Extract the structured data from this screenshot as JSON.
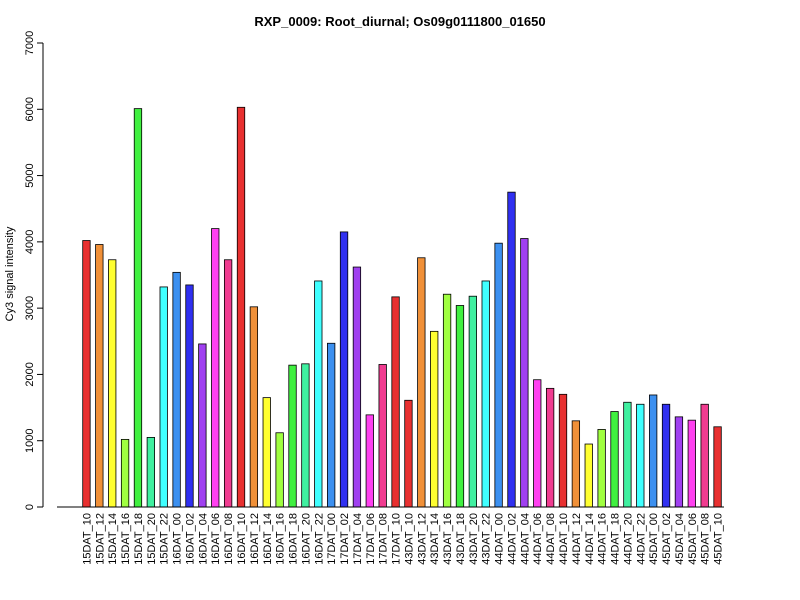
{
  "chart_data": {
    "type": "bar",
    "title": "RXP_0009: Root_diurnal; Os09g0111800_01650",
    "xlabel": "",
    "ylabel": "Cy3 signal intensity",
    "ylim": [
      0,
      7000
    ],
    "yticks": [
      0,
      1000,
      2000,
      3000,
      4000,
      5000,
      6000,
      7000
    ],
    "grid": false,
    "legend": "none",
    "categories": [
      "15DAT_10",
      "15DAT_12",
      "15DAT_14",
      "15DAT_16",
      "15DAT_18",
      "15DAT_20",
      "15DAT_22",
      "16DAT_00",
      "16DAT_02",
      "16DAT_04",
      "16DAT_06",
      "16DAT_08",
      "16DAT_10",
      "16DAT_12",
      "16DAT_14",
      "16DAT_16",
      "16DAT_18",
      "16DAT_20",
      "16DAT_22",
      "17DAT_00",
      "17DAT_02",
      "17DAT_04",
      "17DAT_06",
      "17DAT_08",
      "17DAT_10",
      "43DAT_10",
      "43DAT_12",
      "43DAT_14",
      "43DAT_16",
      "43DAT_18",
      "43DAT_20",
      "43DAT_22",
      "44DAT_00",
      "44DAT_02",
      "44DAT_04",
      "44DAT_06",
      "44DAT_08",
      "44DAT_10",
      "44DAT_12",
      "44DAT_14",
      "44DAT_16",
      "44DAT_18",
      "44DAT_20",
      "44DAT_22",
      "45DAT_00",
      "45DAT_02",
      "45DAT_04",
      "45DAT_06",
      "45DAT_08",
      "45DAT_10"
    ],
    "values": [
      4020,
      3960,
      3730,
      1020,
      6010,
      1050,
      3320,
      3540,
      3350,
      2460,
      4200,
      3730,
      6030,
      3020,
      1650,
      1120,
      2140,
      2160,
      3410,
      2470,
      4150,
      3620,
      1390,
      2150,
      3170,
      1610,
      3760,
      2650,
      3210,
      3040,
      3180,
      3410,
      3980,
      4750,
      4050,
      1920,
      1790,
      1700,
      1300,
      950,
      1170,
      1440,
      1580,
      1550,
      1690,
      1550,
      1360,
      1310,
      1550,
      1210
    ],
    "colors": [
      "#e83030",
      "#f09038",
      "#ffff30",
      "#a0ff40",
      "#40f040",
      "#40f0a0",
      "#40ffff",
      "#3c90f0",
      "#3030f0",
      "#a040f0",
      "#ff40f0",
      "#f03c90",
      "#e83030",
      "#f09038",
      "#ffff30",
      "#a0ff40",
      "#40f040",
      "#40f0a0",
      "#40ffff",
      "#3c90f0",
      "#3030f0",
      "#a040f0",
      "#ff40f0",
      "#f03c90",
      "#e83030",
      "#e83030",
      "#f09038",
      "#ffff30",
      "#a0ff40",
      "#40f040",
      "#40f0a0",
      "#40ffff",
      "#3c90f0",
      "#3030f0",
      "#a040f0",
      "#ff40f0",
      "#f03c90",
      "#e83030",
      "#f09038",
      "#ffff30",
      "#a0ff40",
      "#40f040",
      "#40f0a0",
      "#40ffff",
      "#3c90f0",
      "#3030f0",
      "#a040f0",
      "#ff40f0",
      "#f03c90",
      "#e83030"
    ]
  }
}
